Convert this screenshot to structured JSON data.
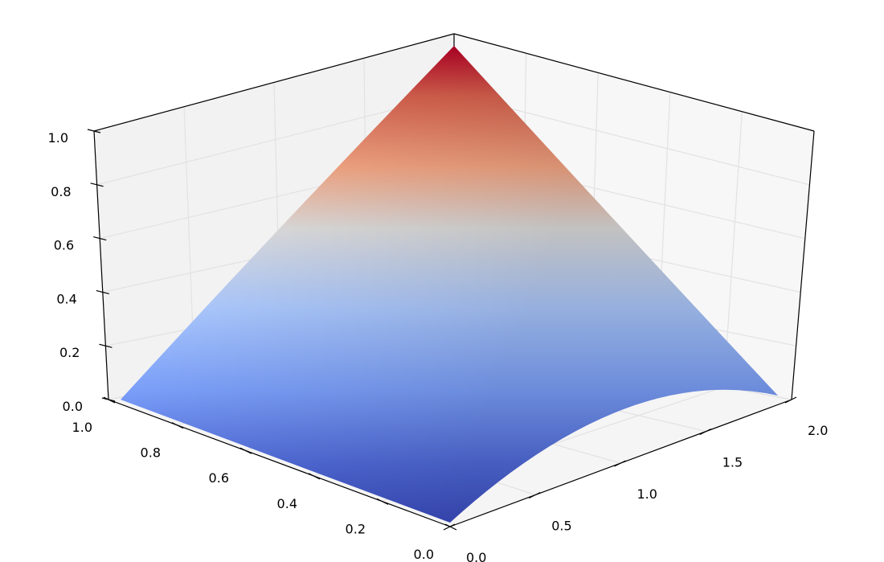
{
  "chart_data": {
    "type": "surface",
    "title": "",
    "xlabel": "",
    "ylabel": "",
    "zlabel": "",
    "x_range": [
      0,
      2
    ],
    "y_range": [
      0,
      1
    ],
    "z_range": [
      0,
      1
    ],
    "grid": true,
    "colormap": "coolwarm",
    "x_ticks": [
      "0.0",
      "0.5",
      "1.0",
      "1.5",
      "2.0"
    ],
    "y_ticks": [
      "0.0",
      "0.2",
      "0.4",
      "0.6",
      "0.8",
      "1.0"
    ],
    "z_ticks": [
      "0.0",
      "0.2",
      "0.4",
      "0.6",
      "0.8",
      "1.0"
    ],
    "surface": {
      "x": [
        0,
        1,
        2
      ],
      "y": [
        0,
        0.5,
        1
      ],
      "z": [
        [
          0.0,
          0.0,
          0.0
        ],
        [
          0.5,
          0.35,
          0.25
        ],
        [
          0.0,
          0.5,
          1.0
        ]
      ]
    }
  }
}
